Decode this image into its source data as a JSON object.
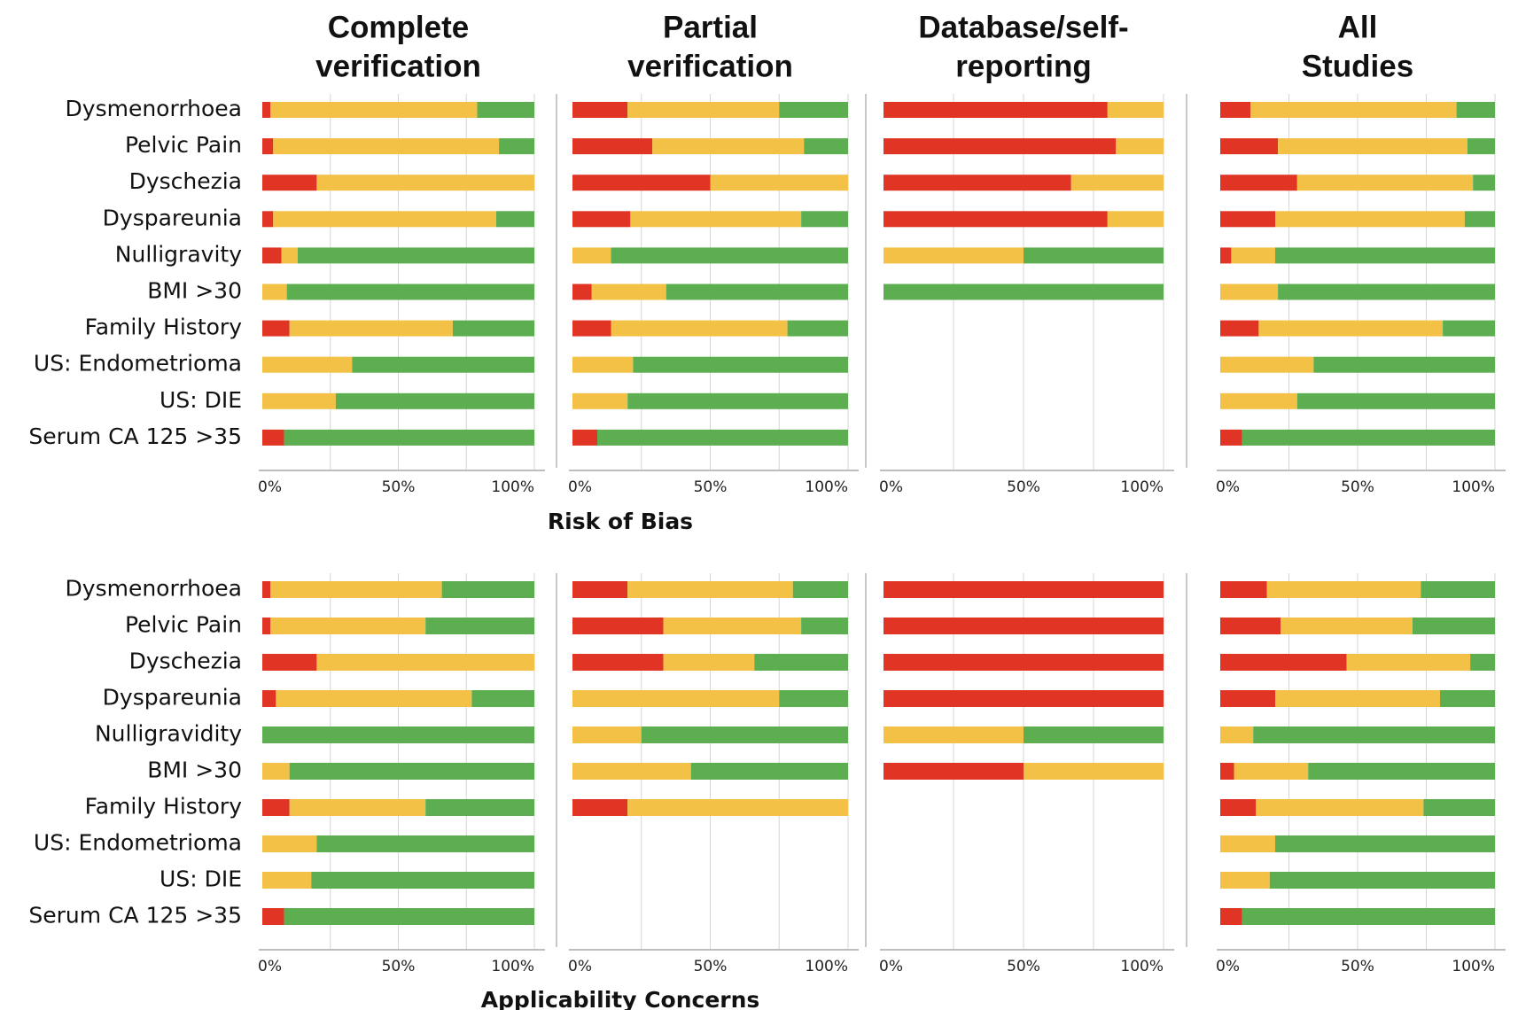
{
  "colors": {
    "high": "#E03424",
    "unclear": "#F2C145",
    "low": "#5CAE50",
    "grid": "#D6D6D6",
    "axis": "#BDBDBD"
  },
  "columns": [
    "Complete verification",
    "Partial verification",
    "Database/self-reporting",
    "All Studies"
  ],
  "column_title_lines": [
    [
      "Complete",
      "verification"
    ],
    [
      "Partial",
      "verification"
    ],
    [
      "Database/self-",
      "reporting"
    ],
    [
      "All",
      "Studies"
    ]
  ],
  "x_ticks": [
    "0%",
    "50%",
    "100%"
  ],
  "chart_data": [
    {
      "type": "bar",
      "stacked": true,
      "orientation": "horizontal",
      "section": "Risk of Bias",
      "categories": [
        "Dysmenorrhoea",
        "Pelvic Pain",
        "Dyschezia",
        "Dyspareunia",
        "Nulligravity",
        "BMI >30",
        "Family History",
        "US: Endometrioma",
        "US: DIE",
        "Serum CA 125 >35"
      ],
      "xlim": [
        0,
        100
      ],
      "panels": [
        {
          "column": "Complete verification",
          "values": [
            [
              3,
              76,
              21
            ],
            [
              4,
              83,
              13
            ],
            [
              20,
              80,
              0
            ],
            [
              4,
              82,
              14
            ],
            [
              7,
              6,
              87
            ],
            [
              0,
              9,
              91
            ],
            [
              10,
              60,
              30
            ],
            [
              0,
              33,
              67
            ],
            [
              0,
              27,
              73
            ],
            [
              8,
              0,
              92
            ]
          ]
        },
        {
          "column": "Partial verification",
          "values": [
            [
              20,
              55,
              25
            ],
            [
              29,
              55,
              16
            ],
            [
              50,
              50,
              0
            ],
            [
              21,
              62,
              17
            ],
            [
              0,
              14,
              86
            ],
            [
              7,
              27,
              66
            ],
            [
              14,
              64,
              22
            ],
            [
              0,
              22,
              78
            ],
            [
              0,
              20,
              80
            ],
            [
              9,
              0,
              91
            ]
          ]
        },
        {
          "column": "Database/self-reporting",
          "values": [
            [
              80,
              20,
              0
            ],
            [
              83,
              17,
              0
            ],
            [
              67,
              33,
              0
            ],
            [
              80,
              20,
              0
            ],
            [
              0,
              50,
              50
            ],
            [
              0,
              0,
              100
            ],
            null,
            null,
            null,
            null
          ]
        },
        {
          "column": "All Studies",
          "values": [
            [
              11,
              75,
              14
            ],
            [
              21,
              69,
              10
            ],
            [
              28,
              64,
              8
            ],
            [
              20,
              69,
              11
            ],
            [
              4,
              16,
              80
            ],
            [
              0,
              21,
              79
            ],
            [
              14,
              67,
              19
            ],
            [
              0,
              34,
              66
            ],
            [
              0,
              28,
              72
            ],
            [
              8,
              0,
              92
            ]
          ]
        }
      ]
    },
    {
      "type": "bar",
      "stacked": true,
      "orientation": "horizontal",
      "section": "Applicability Concerns",
      "categories": [
        "Dysmenorrhoea",
        "Pelvic Pain",
        "Dyschezia",
        "Dyspareunia",
        "Nulligravidity",
        "BMI >30",
        "Family History",
        "US: Endometrioma",
        "US: DIE",
        "Serum CA 125 >35"
      ],
      "xlim": [
        0,
        100
      ],
      "panels": [
        {
          "column": "Complete verification",
          "values": [
            [
              3,
              63,
              34
            ],
            [
              3,
              57,
              40
            ],
            [
              20,
              80,
              0
            ],
            [
              5,
              72,
              23
            ],
            [
              0,
              0,
              100
            ],
            [
              0,
              10,
              90
            ],
            [
              10,
              50,
              40
            ],
            [
              0,
              20,
              80
            ],
            [
              0,
              18,
              82
            ],
            [
              8,
              0,
              92
            ]
          ]
        },
        {
          "column": "Partial verification",
          "values": [
            [
              20,
              60,
              20
            ],
            [
              33,
              50,
              17
            ],
            [
              33,
              33,
              34
            ],
            [
              0,
              75,
              25
            ],
            [
              0,
              25,
              75
            ],
            [
              0,
              43,
              57
            ],
            [
              20,
              80,
              0
            ],
            null,
            null,
            null
          ]
        },
        {
          "column": "Database/self-reporting",
          "values": [
            [
              100,
              0,
              0
            ],
            [
              100,
              0,
              0
            ],
            [
              100,
              0,
              0
            ],
            [
              100,
              0,
              0
            ],
            [
              0,
              50,
              50
            ],
            [
              50,
              50,
              0
            ],
            null,
            null,
            null,
            null
          ]
        },
        {
          "column": "All Studies",
          "values": [
            [
              17,
              56,
              27
            ],
            [
              22,
              48,
              30
            ],
            [
              46,
              45,
              9
            ],
            [
              20,
              60,
              20
            ],
            [
              0,
              12,
              88
            ],
            [
              5,
              27,
              68
            ],
            [
              13,
              61,
              26
            ],
            [
              0,
              20,
              80
            ],
            [
              0,
              18,
              82
            ],
            [
              8,
              0,
              92
            ]
          ]
        }
      ]
    }
  ]
}
